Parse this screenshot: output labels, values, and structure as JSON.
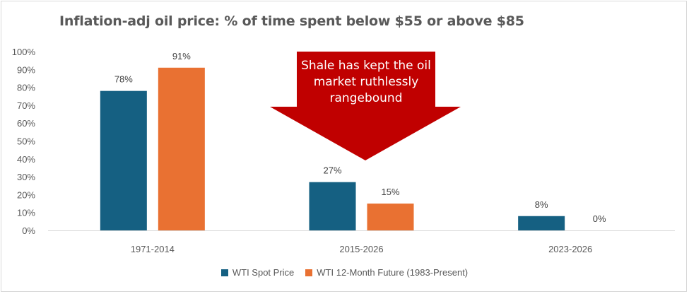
{
  "chart_data": {
    "type": "bar",
    "title": "Inflation-adj oil price: % of time spent below $55 or above $85",
    "categories": [
      "1971-2014",
      "2015-2026",
      "2023-2026"
    ],
    "series": [
      {
        "name": "WTI Spot Price",
        "values": [
          78,
          27,
          8
        ],
        "labels": [
          "78%",
          "27%",
          "8%"
        ],
        "color": "#156082"
      },
      {
        "name": "WTI 12-Month Future (1983-Present)",
        "values": [
          91,
          15,
          0
        ],
        "labels": [
          "91%",
          "15%",
          "0%"
        ],
        "color": "#e97132"
      }
    ],
    "ylim": [
      0,
      100
    ],
    "yticks": [
      "0%",
      "10%",
      "20%",
      "30%",
      "40%",
      "50%",
      "60%",
      "70%",
      "80%",
      "90%",
      "100%"
    ],
    "grid": false,
    "legend_position": "bottom",
    "annotation": {
      "text": "Shale has kept the oil market ruthlessly rangebound",
      "shape": "down-arrow",
      "color": "#c00000"
    }
  }
}
